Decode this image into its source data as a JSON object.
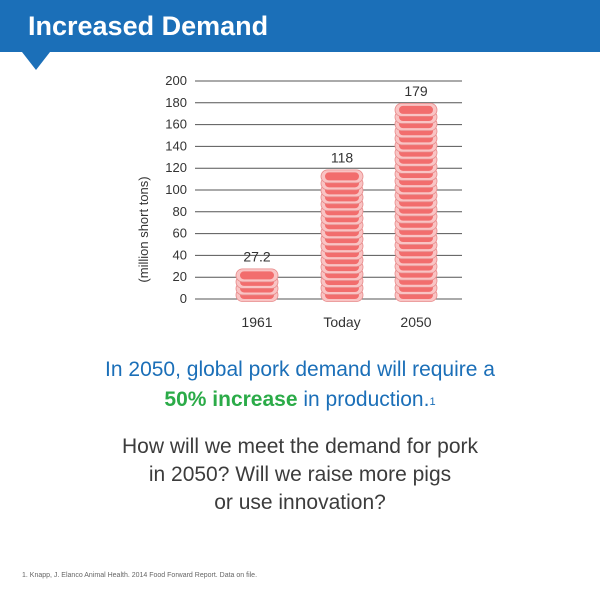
{
  "header": {
    "title": "Increased Demand"
  },
  "chart_data": {
    "type": "bar",
    "categories": [
      "1961",
      "Today",
      "2050"
    ],
    "values": [
      27.2,
      118,
      179
    ],
    "value_labels": [
      "27.2",
      "118",
      "179"
    ],
    "title": "",
    "xlabel": "",
    "ylabel": "(million short tons)",
    "ylim": [
      0,
      200
    ],
    "yticks": [
      0,
      20,
      40,
      60,
      80,
      100,
      120,
      140,
      160,
      180,
      200
    ],
    "grid": true,
    "bar_style": "stacked pork chop icons",
    "colors": {
      "meat": "#f26d6d",
      "fat": "#f9c4c4",
      "grid": "#555555"
    }
  },
  "headline": {
    "line1": "In 2050, global pork demand will require a",
    "highlight": "50% increase",
    "line2_rest": " in production.",
    "footnote_ref": "1",
    "highlight_color": "#2bab48",
    "color": "#1b6fb8"
  },
  "question": {
    "line1": "How will we meet the demand for pork",
    "line2": "in 2050? Will we raise more pigs",
    "line3": "or use innovation?"
  },
  "footnote": "1.  Knapp, J. Elanco Animal Health. 2014 Food Forward Report. Data on file."
}
